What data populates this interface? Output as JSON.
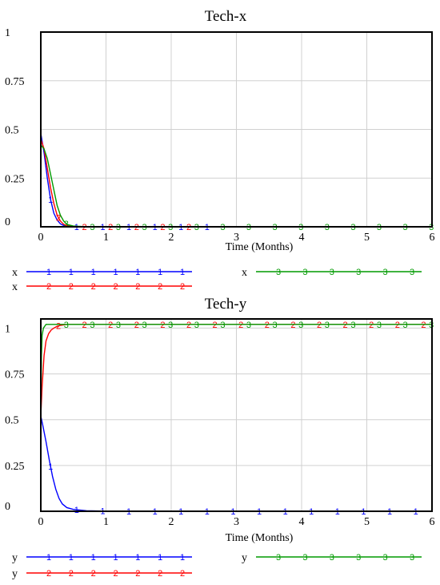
{
  "colors": {
    "series1": "#0000ff",
    "series2": "#ff0000",
    "series3": "#009a00",
    "frame": "#000000",
    "grid": "#d0d0d0"
  },
  "chart_data": [
    {
      "type": "line",
      "title": "Tech-x",
      "xlabel": "Time  (Months)",
      "ylabel": "",
      "xlim": [
        0,
        6
      ],
      "ylim": [
        0,
        1
      ],
      "xticks": [
        "0",
        "1",
        "2",
        "3",
        "4",
        "5",
        "6"
      ],
      "yticks": [
        "0",
        "0.25",
        "0.5",
        "0.75",
        "1"
      ],
      "grid": true,
      "legend_position": "bottom",
      "series": [
        {
          "name": "x",
          "marker": "1",
          "values_x": [
            0,
            0.05,
            0.1,
            0.15,
            0.2,
            0.25,
            0.3,
            0.35,
            0.4,
            0.5,
            0.7,
            1,
            2,
            2.6
          ],
          "values_y": [
            0.48,
            0.38,
            0.25,
            0.14,
            0.07,
            0.035,
            0.015,
            0.007,
            0.003,
            0.001,
            0,
            0,
            0,
            0
          ]
        },
        {
          "name": "x",
          "marker": "2",
          "values_x": [
            0,
            0.05,
            0.1,
            0.15,
            0.2,
            0.25,
            0.3,
            0.35,
            0.4,
            0.5,
            0.7,
            1,
            2,
            2.6
          ],
          "values_y": [
            0.45,
            0.4,
            0.3,
            0.2,
            0.12,
            0.06,
            0.03,
            0.013,
            0.006,
            0.002,
            0,
            0,
            0,
            0
          ]
        },
        {
          "name": "x",
          "marker": "3",
          "values_x": [
            0,
            0.05,
            0.1,
            0.15,
            0.2,
            0.25,
            0.3,
            0.35,
            0.4,
            0.5,
            0.7,
            1,
            2,
            3,
            6
          ],
          "values_y": [
            0.42,
            0.4,
            0.35,
            0.27,
            0.19,
            0.11,
            0.06,
            0.03,
            0.012,
            0.004,
            0,
            0,
            0,
            0,
            0
          ]
        }
      ]
    },
    {
      "type": "line",
      "title": "Tech-y",
      "xlabel": "Time  (Months)",
      "ylabel": "",
      "xlim": [
        0,
        6
      ],
      "ylim": [
        0,
        1.05
      ],
      "xticks": [
        "0",
        "1",
        "2",
        "3",
        "4",
        "5",
        "6"
      ],
      "yticks": [
        "0",
        "0.25",
        "0.5",
        "0.75",
        "1"
      ],
      "grid": true,
      "legend_position": "bottom",
      "series": [
        {
          "name": "y",
          "marker": "1",
          "values_x": [
            0,
            0.03,
            0.08,
            0.13,
            0.18,
            0.23,
            0.28,
            0.33,
            0.4,
            0.5,
            0.7,
            1,
            2,
            3,
            6
          ],
          "values_y": [
            0.52,
            0.47,
            0.38,
            0.28,
            0.19,
            0.12,
            0.07,
            0.04,
            0.02,
            0.01,
            0.003,
            0.001,
            0,
            0,
            0
          ]
        },
        {
          "name": "y",
          "marker": "2",
          "values_x": [
            0,
            0.02,
            0.05,
            0.08,
            0.12,
            0.16,
            0.2,
            0.25,
            0.3,
            0.4,
            0.6,
            1,
            6
          ],
          "values_y": [
            0.52,
            0.68,
            0.85,
            0.93,
            0.97,
            0.99,
            1.0,
            1.01,
            1.015,
            1.02,
            1.02,
            1.02,
            1.02
          ]
        },
        {
          "name": "y",
          "marker": "3",
          "values_x": [
            0,
            0.01,
            0.02,
            0.04,
            0.06,
            0.08,
            0.12,
            0.2,
            0.5,
            6
          ],
          "values_y": [
            0.52,
            0.85,
            0.96,
            1.0,
            1.01,
            1.02,
            1.02,
            1.02,
            1.02,
            1.02
          ]
        }
      ]
    }
  ],
  "legends": [
    {
      "label": "x",
      "markers": [
        "1",
        "2",
        "3"
      ]
    },
    {
      "label": "y",
      "markers": [
        "1",
        "2",
        "3"
      ]
    }
  ]
}
